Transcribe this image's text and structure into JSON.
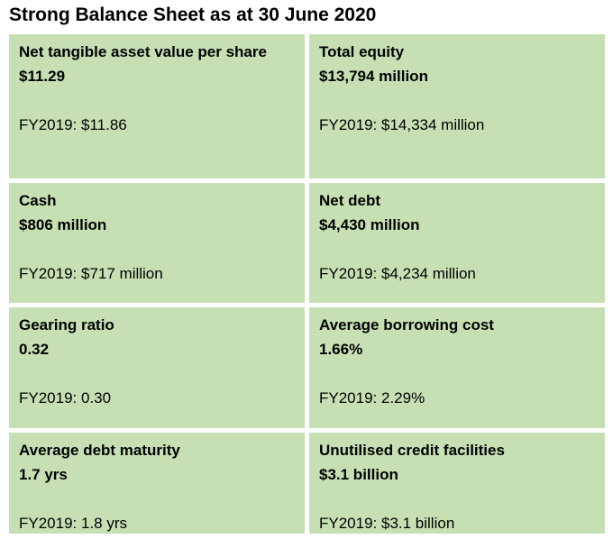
{
  "page": {
    "title": "Strong Balance Sheet as at 30 June 2020"
  },
  "colors": {
    "cell_background": "#c6e0b4",
    "gutter": "#ffffff",
    "text": "#000000"
  },
  "table": {
    "rows": [
      [
        {
          "label": "Net tangible asset value per share",
          "value": "$11.29",
          "prior": "FY2019: $11.86"
        },
        {
          "label": "Total equity",
          "value": "$13,794 million",
          "prior": "FY2019: $14,334 million"
        }
      ],
      [
        {
          "label": "Cash",
          "value": "$806 million",
          "prior": "FY2019: $717 million"
        },
        {
          "label": "Net debt",
          "value": "$4,430 million",
          "prior": "FY2019: $4,234 million"
        }
      ],
      [
        {
          "label": "Gearing ratio",
          "value": "0.32",
          "prior": "FY2019: 0.30"
        },
        {
          "label": "Average borrowing cost",
          "value": "1.66%",
          "prior": "FY2019: 2.29%"
        }
      ],
      [
        {
          "label": "Average debt maturity",
          "value": "1.7 yrs",
          "prior": "FY2019: 1.8 yrs"
        },
        {
          "label": "Unutilised credit facilities",
          "value": "$3.1 billion",
          "prior": "FY2019: $3.1 billion"
        }
      ]
    ]
  }
}
